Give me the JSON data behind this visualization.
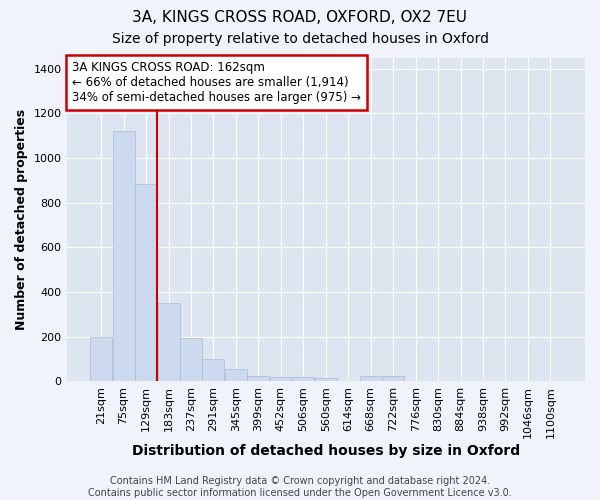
{
  "title": "3A, KINGS CROSS ROAD, OXFORD, OX2 7EU",
  "subtitle": "Size of property relative to detached houses in Oxford",
  "xlabel": "Distribution of detached houses by size in Oxford",
  "ylabel": "Number of detached properties",
  "bar_labels": [
    "21sqm",
    "75sqm",
    "129sqm",
    "183sqm",
    "237sqm",
    "291sqm",
    "345sqm",
    "399sqm",
    "452sqm",
    "506sqm",
    "560sqm",
    "614sqm",
    "668sqm",
    "722sqm",
    "776sqm",
    "830sqm",
    "884sqm",
    "938sqm",
    "992sqm",
    "1046sqm",
    "1100sqm"
  ],
  "bar_values": [
    200,
    1120,
    885,
    350,
    195,
    100,
    55,
    25,
    20,
    18,
    15,
    0,
    25,
    25,
    0,
    0,
    0,
    0,
    0,
    0,
    0
  ],
  "bar_color": "#ccd9ef",
  "bar_edge_color": "#aabbd8",
  "vline_x": 2.5,
  "vline_color": "#cc0000",
  "annotation_text": "3A KINGS CROSS ROAD: 162sqm\n← 66% of detached houses are smaller (1,914)\n34% of semi-detached houses are larger (975) →",
  "annotation_box_color": "#ffffff",
  "annotation_box_edge": "#cc0000",
  "ylim": [
    0,
    1450
  ],
  "yticks": [
    0,
    200,
    400,
    600,
    800,
    1000,
    1200,
    1400
  ],
  "background_color": "#dde5f0",
  "grid_color": "#ffffff",
  "fig_background": "#f0f4fa",
  "footer_text": "Contains HM Land Registry data © Crown copyright and database right 2024.\nContains public sector information licensed under the Open Government Licence v3.0.",
  "title_fontsize": 11,
  "subtitle_fontsize": 10,
  "xlabel_fontsize": 10,
  "ylabel_fontsize": 9,
  "tick_fontsize": 8,
  "footer_fontsize": 7,
  "annot_fontsize": 8.5
}
